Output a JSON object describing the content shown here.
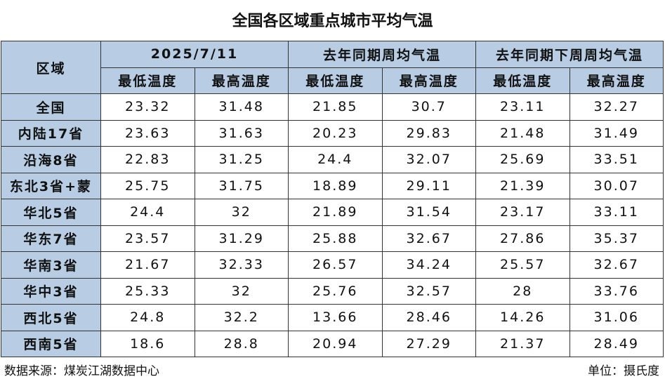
{
  "title": "全国各区域重点城市平均气温",
  "table": {
    "header": {
      "region": "区域",
      "groups": [
        "2025/7/11",
        "去年同期周均气温",
        "去年同期下周周均气温"
      ],
      "subheaders": [
        "最低温度",
        "最高温度",
        "最低温度",
        "最高温度",
        "最低温度",
        "最高温度"
      ]
    },
    "rows": [
      [
        "全国",
        23.32,
        31.48,
        21.85,
        30.7,
        23.11,
        32.27
      ],
      [
        "内陆17省",
        23.63,
        31.63,
        20.23,
        29.83,
        21.48,
        31.49
      ],
      [
        "沿海8省",
        22.83,
        31.25,
        24.4,
        32.07,
        25.69,
        33.51
      ],
      [
        "东北3省+蒙",
        25.75,
        31.75,
        18.89,
        29.11,
        21.39,
        30.07
      ],
      [
        "华北5省",
        24.4,
        32,
        21.89,
        31.54,
        23.17,
        33.11
      ],
      [
        "华东7省",
        23.57,
        31.29,
        25.88,
        32.67,
        27.86,
        35.37
      ],
      [
        "华南3省",
        21.67,
        32.33,
        26.57,
        34.24,
        25.57,
        32.67
      ],
      [
        "华中3省",
        25.33,
        32,
        25.76,
        32.57,
        28,
        33.76
      ],
      [
        "西北5省",
        24.8,
        32.2,
        13.66,
        28.46,
        14.26,
        31.06
      ],
      [
        "西南5省",
        18.6,
        28.8,
        20.94,
        27.29,
        21.37,
        28.49
      ]
    ]
  },
  "footer": {
    "source": "数据来源：煤炭江湖数据中心",
    "unit": "单位：摄氏度"
  }
}
